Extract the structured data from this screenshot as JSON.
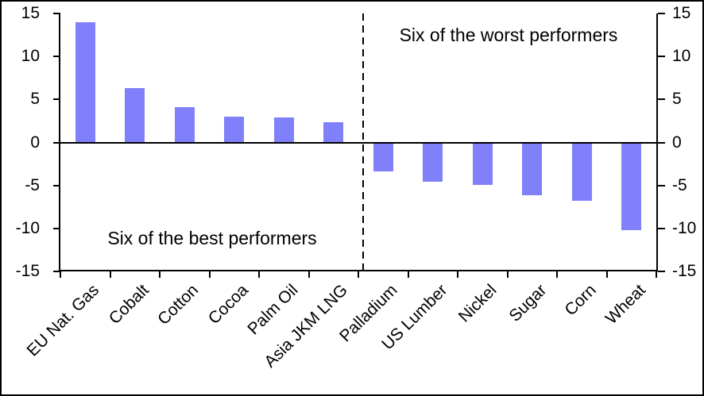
{
  "chart_data": {
    "type": "bar",
    "title": "",
    "xlabel": "",
    "ylabel": "",
    "categories": [
      "EU Nat. Gas",
      "Cobalt",
      "Cotton",
      "Cocoa",
      "Palm Oil",
      "Asia JKM LNG",
      "Palladium",
      "US Lumber",
      "Nickel",
      "Sugar",
      "Corn",
      "Wheat"
    ],
    "values": [
      14.0,
      6.3,
      4.1,
      3.0,
      2.9,
      2.4,
      -3.4,
      -4.6,
      -4.9,
      -6.1,
      -6.8,
      -10.2
    ],
    "ylim": [
      -15,
      15
    ],
    "yticks": [
      15,
      10,
      5,
      0,
      -5,
      -10,
      -15
    ],
    "ytick_labels": [
      "15",
      "10",
      "5",
      "0",
      "-5",
      "-10",
      "-15"
    ],
    "dual_y_axis": true,
    "grid": false,
    "legend": "none",
    "bar_color": "#8080fa",
    "axis_color": "#000000",
    "divider_after_category": "Asia JKM LNG",
    "annotations": {
      "best_performers": "Six of the best performers",
      "worst_performers": "Six of the worst performers"
    }
  }
}
